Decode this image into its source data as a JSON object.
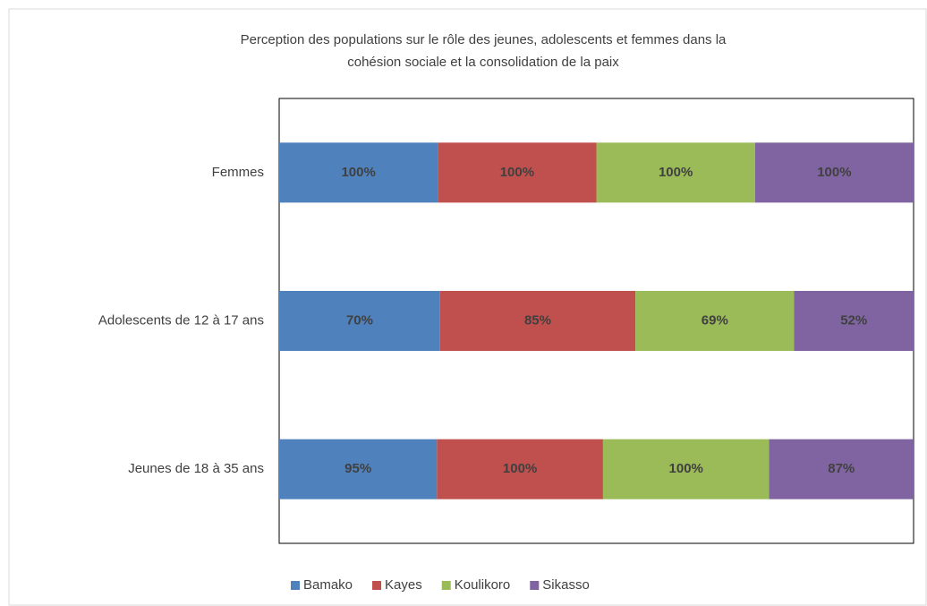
{
  "chart_data": {
    "type": "bar",
    "orientation": "horizontal",
    "stacked": "percent",
    "title": [
      "Perception des populations sur le rôle des jeunes, adolescents et femmes dans la",
      "cohésion sociale et la consolidation de la paix"
    ],
    "categories": [
      "Femmes",
      "Adolescents de 12 à 17 ans",
      "Jeunes de 18 à 35 ans"
    ],
    "series": [
      {
        "name": "Bamako",
        "color": "#4f81bd",
        "values": [
          100,
          70,
          95
        ],
        "value_labels": [
          "100%",
          "70%",
          "95%"
        ]
      },
      {
        "name": "Kayes",
        "color": "#c0504d",
        "values": [
          100,
          85,
          100
        ],
        "value_labels": [
          "100%",
          "85%",
          "100%"
        ]
      },
      {
        "name": "Koulikoro",
        "color": "#9bbb59",
        "values": [
          100,
          69,
          100
        ],
        "value_labels": [
          "100%",
          "69%",
          "100%"
        ]
      },
      {
        "name": "Sikasso",
        "color": "#8064a2",
        "values": [
          100,
          52,
          87
        ],
        "value_labels": [
          "100%",
          "52%",
          "87%"
        ]
      }
    ],
    "legend": "bottom"
  }
}
